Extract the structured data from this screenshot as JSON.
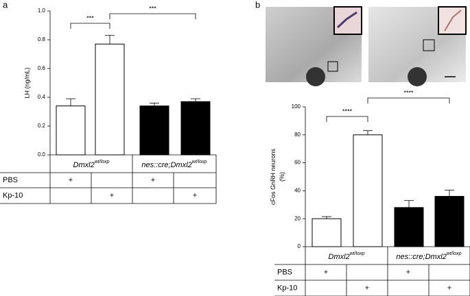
{
  "panels": [
    "a",
    "b"
  ],
  "chart_data": [
    {
      "type": "bar",
      "y_label": [
        "LH (ng/mL)"
      ],
      "ylim": [
        0,
        1
      ],
      "yticks": [
        {
          "value": 0,
          "label": "0.0"
        },
        0.2,
        0.4,
        0.6,
        0.8,
        {
          "value": 1,
          "label": "1.0"
        }
      ],
      "values": [
        0.34,
        0.77,
        0.34,
        0.37
      ],
      "errors": [
        0.05,
        0.06,
        0.02,
        0.02
      ],
      "colors": [
        "#ffffff",
        "#ffffff",
        "#000000",
        "#000000"
      ],
      "significance": [
        {
          "text": "***",
          "between": [
            0,
            1
          ]
        },
        {
          "text": "***",
          "between": [
            1,
            3
          ]
        }
      ],
      "table": {
        "groups": [
          {
            "name": "Dmxl2",
            "superscript": "wt/loxp"
          },
          {
            "name": "nes::cre;Dmxl2",
            "superscript": "wt/loxp"
          }
        ],
        "rows": [
          {
            "label": "PBS",
            "cells": [
              "+",
              null,
              "+",
              null
            ]
          },
          {
            "label": "Kp-10",
            "cells": [
              null,
              "+",
              null,
              "+"
            ]
          }
        ]
      }
    },
    {
      "type": "bar",
      "y_label": [
        "cFos GnRH neurons",
        "(%)"
      ],
      "ylim": [
        0,
        100
      ],
      "yticks": [
        0,
        20,
        40,
        60,
        80,
        100
      ],
      "values": [
        20,
        80,
        28,
        36
      ],
      "errors": [
        1.5,
        3,
        5,
        4.5
      ],
      "colors": [
        "#ffffff",
        "#ffffff",
        "#000000",
        "#000000"
      ],
      "significance": [
        {
          "text": "****",
          "between": [
            0,
            1
          ]
        },
        {
          "text": "****",
          "between": [
            1,
            3
          ]
        }
      ],
      "table": {
        "groups": [
          {
            "name": "Dmxl2",
            "superscript": "wt/loxp"
          },
          {
            "name": "nes::cre;Dmxl2",
            "superscript": "wt/loxp"
          }
        ],
        "rows": [
          {
            "label": "PBS",
            "cells": [
              "+",
              null,
              "+",
              null
            ]
          },
          {
            "label": "Kp-10",
            "cells": [
              null,
              "+",
              null,
              "+"
            ]
          }
        ]
      }
    }
  ]
}
